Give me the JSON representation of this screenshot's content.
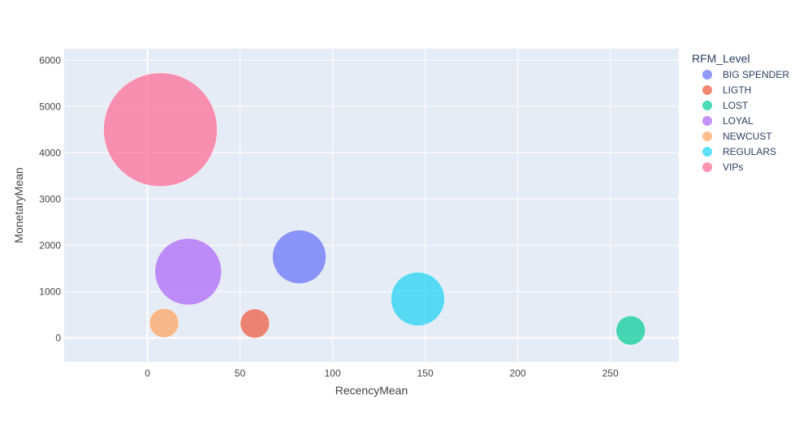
{
  "chart_data": {
    "type": "scatter",
    "xlabel": "RecencyMean",
    "ylabel": "MonetaryMean",
    "xlim": [
      -45,
      287
    ],
    "ylim": [
      -520,
      6250
    ],
    "xticks": [
      0,
      50,
      100,
      150,
      200,
      250
    ],
    "yticks": [
      0,
      1000,
      2000,
      3000,
      4000,
      5000,
      6000
    ],
    "grid": true,
    "legend_title": "RFM_Level",
    "legend_position": "right",
    "series": [
      {
        "name": "BIG SPENDER",
        "color": "#636efa",
        "x": 82,
        "y": 1750,
        "size": 33
      },
      {
        "name": "LIGTH",
        "color": "#ef553b",
        "x": 58,
        "y": 310,
        "size": 18
      },
      {
        "name": "LOST",
        "color": "#00cc96",
        "x": 261,
        "y": 160,
        "size": 18
      },
      {
        "name": "LOYAL",
        "color": "#ab63fa",
        "x": 22,
        "y": 1430,
        "size": 41
      },
      {
        "name": "NEWCUST",
        "color": "#ffa15a",
        "x": 9,
        "y": 320,
        "size": 18
      },
      {
        "name": "REGULARS",
        "color": "#19d3f3",
        "x": 146,
        "y": 840,
        "size": 33
      },
      {
        "name": "VIPs",
        "color": "#ff6692",
        "x": 7,
        "y": 4500,
        "size": 70
      }
    ]
  }
}
